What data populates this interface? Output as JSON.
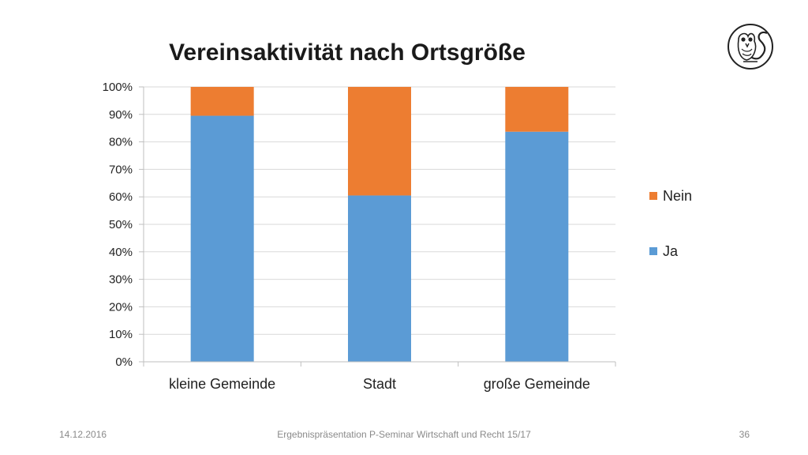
{
  "chart_data": {
    "type": "bar",
    "stacked": true,
    "percent": true,
    "title": "Vereinsaktivität nach Ortsgröße",
    "categories": [
      "kleine Gemeinde",
      "Stadt",
      "große Gemeinde"
    ],
    "series": [
      {
        "name": "Ja",
        "values": [
          89.5,
          60.5,
          83.7
        ],
        "color": "#5b9bd5"
      },
      {
        "name": "Nein",
        "values": [
          10.5,
          39.5,
          16.3
        ],
        "color": "#ed7d31"
      }
    ],
    "yticks": [
      "0%",
      "10%",
      "20%",
      "30%",
      "40%",
      "50%",
      "60%",
      "70%",
      "80%",
      "90%",
      "100%"
    ],
    "ylim": [
      0,
      100
    ],
    "grid": true,
    "legend": {
      "placement": "right",
      "order": [
        "Nein",
        "Ja"
      ]
    }
  },
  "footer": {
    "date": "14.12.2016",
    "center": "Ergebnispräsentation P-Seminar Wirtschaft und Recht 15/17",
    "page": "36"
  },
  "logo": {
    "icon": "owl-crest-icon"
  }
}
